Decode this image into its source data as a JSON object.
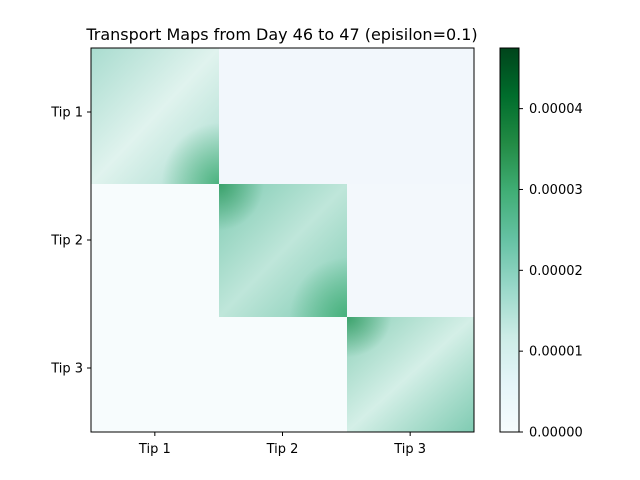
{
  "chart_data": {
    "type": "heatmap",
    "title": "Transport Maps from Day 46 to 47 (episilon=0.1)",
    "x_tick_labels": [
      "Tip 1",
      "Tip 2",
      "Tip 3"
    ],
    "y_tick_labels": [
      "Tip 1",
      "Tip 2",
      "Tip 3"
    ],
    "colormap": "BuGn",
    "colors": [
      "#f7fcfd",
      "#e5f5f9",
      "#ccece6",
      "#99d8c9",
      "#66c2a4",
      "#41ae76",
      "#238b45",
      "#006d2c",
      "#00441b"
    ],
    "colorbar": {
      "range": [
        0,
        4.75e-05
      ],
      "ticks": [
        0,
        1e-05,
        2e-05,
        3e-05,
        4e-05
      ],
      "tick_labels": [
        "0.00000",
        "0.00001",
        "0.00002",
        "0.00003",
        "0.00004"
      ]
    },
    "matrix_approx": [
      [
        1.7e-05,
        5e-07,
        3e-07
      ],
      [
        3e-07,
        1.9e-05,
        5e-07
      ],
      [
        3e-07,
        3e-07,
        1.6e-05
      ]
    ],
    "diagonal_block_peak": 4.75e-05
  }
}
